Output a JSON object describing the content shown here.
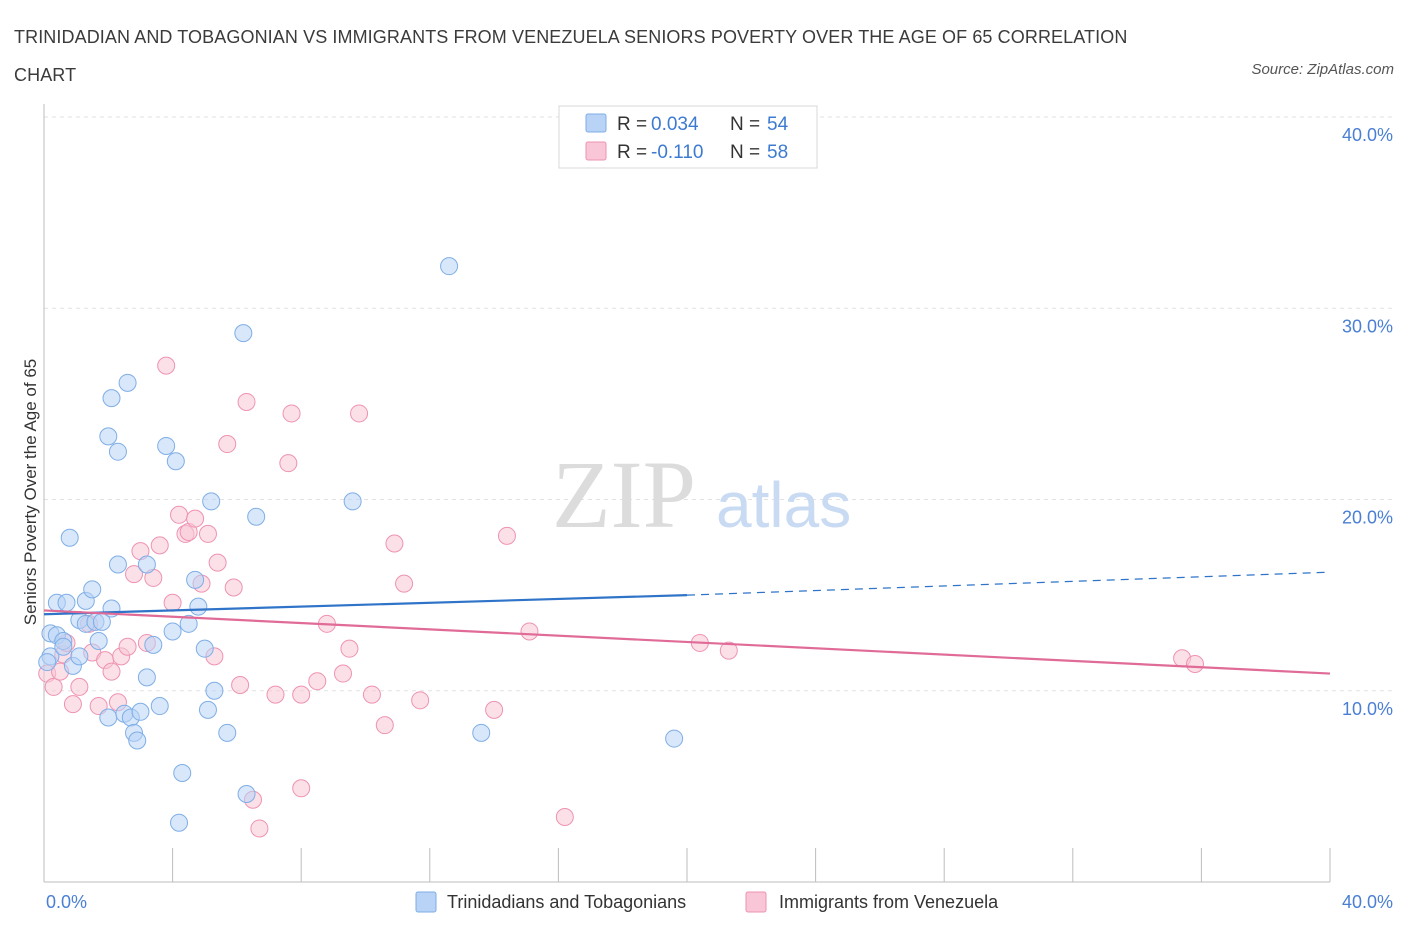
{
  "title": "TRINIDADIAN AND TOBAGONIAN VS IMMIGRANTS FROM VENEZUELA SENIORS POVERTY OVER THE AGE OF 65 CORRELATION CHART",
  "source": "Source: ZipAtlas.com",
  "watermark": {
    "zip": "ZIP",
    "atlas": "atlas"
  },
  "colors": {
    "blue_fill": "#b8d3f5",
    "blue_stroke": "#7faee6",
    "blue_line": "#2f74c8",
    "pink_fill": "#f8c6d6",
    "pink_stroke": "#ee93b1",
    "pink_line": "#e06b97",
    "grid": "#e2e2e2",
    "tick_text": "#4a7fd4"
  },
  "stats_legend": {
    "r_label": "R =",
    "n_label": "N =",
    "rows": [
      {
        "r": "0.034",
        "n": "54"
      },
      {
        "r": "-0.110",
        "n": "58"
      }
    ]
  },
  "chart_data": {
    "type": "scatter",
    "title": "TRINIDADIAN AND TOBAGONIAN VS IMMIGRANTS FROM VENEZUELA SENIORS POVERTY OVER THE AGE OF 65 CORRELATION CHART",
    "xlabel": "",
    "ylabel": "Seniors Poverty Over the Age of 65",
    "xlim": [
      0,
      40
    ],
    "ylim": [
      0,
      40
    ],
    "x_tick_labels": [
      "0.0%",
      "40.0%"
    ],
    "y_ticks": [
      10,
      20,
      30,
      40
    ],
    "y_tick_labels": [
      "10.0%",
      "20.0%",
      "30.0%",
      "40.0%"
    ],
    "grid": true,
    "legend": "bottom-center",
    "series": [
      {
        "name": "Trinidadians and Tobagonians",
        "color": "#b8d3f5",
        "trend": {
          "x": [
            0,
            20
          ],
          "y": [
            14.0,
            15.0
          ],
          "dashed_to": [
            40,
            16.2
          ]
        },
        "points": [
          [
            0.2,
            11.8
          ],
          [
            0.2,
            13.0
          ],
          [
            0.4,
            12.9
          ],
          [
            0.4,
            14.6
          ],
          [
            0.6,
            12.6
          ],
          [
            0.6,
            12.3
          ],
          [
            0.7,
            14.6
          ],
          [
            0.8,
            18.0
          ],
          [
            0.9,
            11.3
          ],
          [
            1.1,
            11.8
          ],
          [
            1.1,
            13.7
          ],
          [
            1.3,
            14.7
          ],
          [
            1.3,
            13.5
          ],
          [
            1.5,
            15.3
          ],
          [
            1.6,
            13.6
          ],
          [
            1.7,
            12.6
          ],
          [
            1.8,
            13.6
          ],
          [
            2.0,
            23.3
          ],
          [
            2.0,
            8.6
          ],
          [
            2.1,
            14.3
          ],
          [
            2.1,
            25.3
          ],
          [
            2.3,
            22.5
          ],
          [
            2.3,
            16.6
          ],
          [
            2.5,
            8.8
          ],
          [
            2.6,
            26.1
          ],
          [
            2.7,
            8.6
          ],
          [
            2.8,
            7.8
          ],
          [
            2.9,
            7.4
          ],
          [
            3.0,
            8.9
          ],
          [
            3.2,
            16.6
          ],
          [
            3.2,
            10.7
          ],
          [
            3.4,
            12.4
          ],
          [
            3.6,
            9.2
          ],
          [
            3.8,
            22.8
          ],
          [
            4.0,
            13.1
          ],
          [
            4.1,
            22.0
          ],
          [
            4.2,
            3.1
          ],
          [
            4.3,
            5.7
          ],
          [
            4.5,
            13.5
          ],
          [
            4.7,
            15.8
          ],
          [
            4.8,
            14.4
          ],
          [
            5.0,
            12.2
          ],
          [
            5.1,
            9.0
          ],
          [
            5.2,
            19.9
          ],
          [
            5.3,
            10.0
          ],
          [
            5.7,
            7.8
          ],
          [
            6.2,
            28.7
          ],
          [
            6.3,
            4.6
          ],
          [
            6.6,
            19.1
          ],
          [
            9.6,
            19.9
          ],
          [
            12.6,
            32.2
          ],
          [
            13.6,
            7.8
          ],
          [
            19.6,
            7.5
          ],
          [
            0.1,
            11.5
          ]
        ]
      },
      {
        "name": "Immigrants from Venezuela",
        "color": "#f8c6d6",
        "trend": {
          "x": [
            0,
            40
          ],
          "y": [
            14.2,
            10.9
          ]
        },
        "points": [
          [
            0.1,
            10.9
          ],
          [
            0.3,
            10.2
          ],
          [
            0.5,
            11.0
          ],
          [
            0.6,
            11.9
          ],
          [
            0.7,
            12.5
          ],
          [
            0.9,
            9.3
          ],
          [
            1.1,
            10.2
          ],
          [
            1.4,
            13.5
          ],
          [
            1.5,
            12.0
          ],
          [
            1.7,
            9.2
          ],
          [
            1.9,
            11.6
          ],
          [
            2.1,
            11.0
          ],
          [
            2.3,
            9.4
          ],
          [
            2.4,
            11.8
          ],
          [
            2.6,
            12.3
          ],
          [
            2.8,
            16.1
          ],
          [
            3.0,
            17.3
          ],
          [
            3.2,
            12.5
          ],
          [
            3.4,
            15.9
          ],
          [
            3.6,
            17.6
          ],
          [
            3.8,
            27.0
          ],
          [
            4.0,
            14.6
          ],
          [
            4.2,
            19.2
          ],
          [
            4.4,
            18.2
          ],
          [
            4.5,
            18.3
          ],
          [
            4.7,
            19.0
          ],
          [
            4.9,
            15.6
          ],
          [
            5.1,
            18.2
          ],
          [
            5.3,
            11.8
          ],
          [
            5.4,
            16.7
          ],
          [
            5.7,
            22.9
          ],
          [
            5.9,
            15.4
          ],
          [
            6.1,
            10.3
          ],
          [
            6.3,
            25.1
          ],
          [
            6.5,
            4.3
          ],
          [
            6.7,
            2.8
          ],
          [
            7.2,
            9.8
          ],
          [
            7.6,
            21.9
          ],
          [
            7.7,
            24.5
          ],
          [
            8.0,
            9.8
          ],
          [
            8.0,
            4.9
          ],
          [
            8.5,
            10.5
          ],
          [
            8.8,
            13.5
          ],
          [
            9.3,
            10.9
          ],
          [
            9.5,
            12.2
          ],
          [
            9.8,
            24.5
          ],
          [
            10.2,
            9.8
          ],
          [
            10.6,
            8.2
          ],
          [
            10.9,
            17.7
          ],
          [
            11.2,
            15.6
          ],
          [
            11.7,
            9.5
          ],
          [
            14.0,
            9.0
          ],
          [
            14.4,
            18.1
          ],
          [
            15.1,
            13.1
          ],
          [
            16.2,
            3.4
          ],
          [
            20.4,
            12.5
          ],
          [
            21.3,
            12.1
          ],
          [
            35.4,
            11.7
          ]
        ]
      }
    ],
    "extra_points_series1": [
      [
        35.8,
        11.4
      ]
    ]
  },
  "bottom_legend": [
    {
      "label": "Trinidadians and Tobagonians"
    },
    {
      "label": "Immigrants from Venezuela"
    }
  ]
}
